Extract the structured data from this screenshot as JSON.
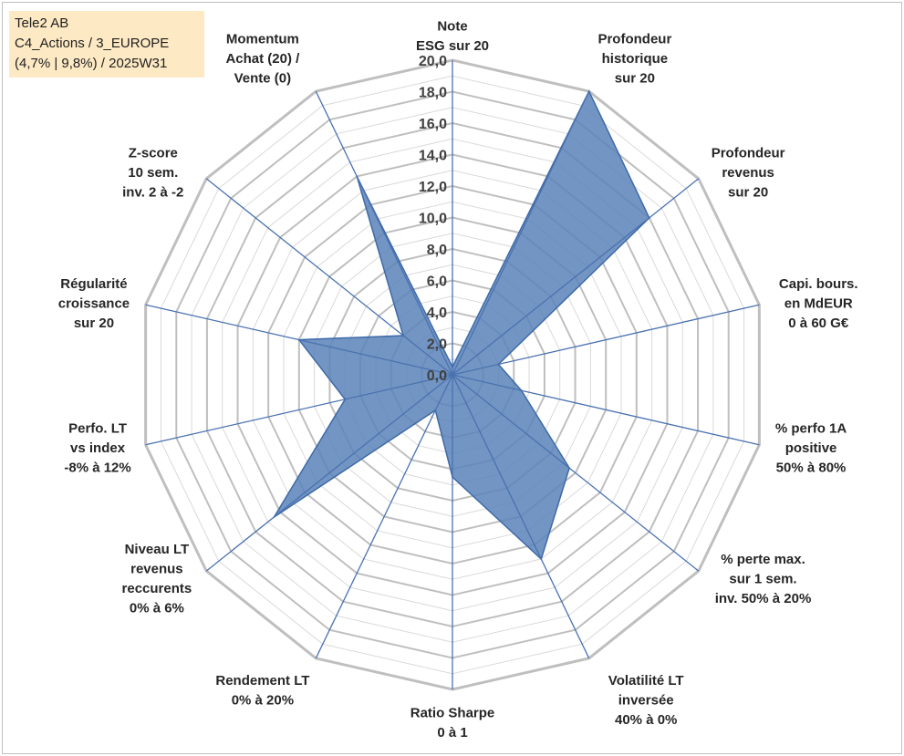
{
  "infobox": {
    "line1": "Tele2 AB",
    "line2": "C4_Actions / 3_EUROPE",
    "line3": "(4,7% | 9,8%) / 2025W31"
  },
  "chart_data": {
    "type": "radar",
    "title": "",
    "rmin": 0,
    "rmax": 20,
    "tick_step": 2,
    "ticks": [
      "0,0",
      "2,0",
      "4,0",
      "6,0",
      "8,0",
      "10,0",
      "12,0",
      "14,0",
      "16,0",
      "18,0",
      "20,0"
    ],
    "grid": true,
    "axes": [
      {
        "label": [
          "Note",
          "ESG sur 20"
        ],
        "value": 0.5
      },
      {
        "label": [
          "Profondeur",
          "historique",
          "sur 20"
        ],
        "value": 20.0
      },
      {
        "label": [
          "Profondeur",
          "revenus",
          "sur 20"
        ],
        "value": 16.0
      },
      {
        "label": [
          "Capi. bours.",
          "en MdEUR",
          "0 à 60 G€"
        ],
        "value": 3.0
      },
      {
        "label": [
          "% perfo 1A",
          "positive",
          "50% à 80%"
        ],
        "value": 4.5
      },
      {
        "label": [
          "% perte max.",
          "sur 1 sem.",
          "inv. 50% à 20%"
        ],
        "value": 9.5
      },
      {
        "label": [
          "Volatilité LT",
          "inversée",
          "40% à 0%"
        ],
        "value": 13.0
      },
      {
        "label": [
          "Ratio Sharpe",
          "0 à 1"
        ],
        "value": 6.5
      },
      {
        "label": [
          "Rendement LT",
          "0% à 20%"
        ],
        "value": 2.5
      },
      {
        "label": [
          "Niveau LT",
          "revenus",
          "reccurents",
          "0% à 6%"
        ],
        "value": 14.5
      },
      {
        "label": [
          "Perfo. LT",
          "vs index",
          "-8% à 12%"
        ],
        "value": 7.0
      },
      {
        "label": [
          "Régularité",
          "croissance",
          "sur 20"
        ],
        "value": 10.0
      },
      {
        "label": [
          "Z-score",
          "10 sem.",
          "inv. 2 à -2"
        ],
        "value": 4.0
      },
      {
        "label": [
          "Momentum",
          "Achat (20) /",
          "Vente (0)"
        ],
        "value": 14.0
      }
    ],
    "colors": {
      "fill": "#5b82b8",
      "stroke": "#3d6aa8",
      "spoke": "#4a72b0",
      "grid_major": "#bfbfbf",
      "grid_minor": "#d9d9d9"
    }
  }
}
